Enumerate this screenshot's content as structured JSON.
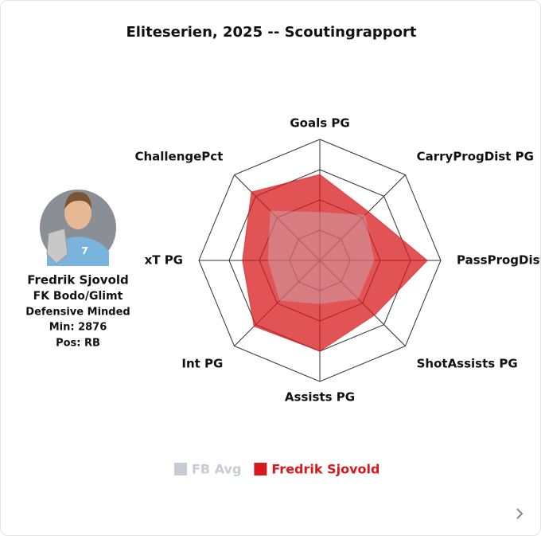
{
  "chart_data": {
    "type": "radar",
    "title": "Eliteserien, 2025 -- Scoutingrapport",
    "categories": [
      "Goals PG",
      "CarryProgDist PG",
      "PassProgDist",
      "ShotAssists PG",
      "Assists PG",
      "Int PG",
      "xT PG",
      "ChallengePct"
    ],
    "rlim": [
      0,
      100
    ],
    "rticks": [
      25,
      50,
      75,
      100
    ],
    "series": [
      {
        "name": "FB Avg",
        "color": "#c5ccd3",
        "values": [
          40,
          53,
          45,
          45,
          36,
          47,
          43,
          58
        ]
      },
      {
        "name": "Fredrik Sjovold",
        "color": "#d7191c",
        "values": [
          71,
          57,
          89,
          64,
          75,
          77,
          64,
          80
        ]
      }
    ]
  },
  "player": {
    "name": "Fredrik Sjovold",
    "team": "FK Bodo/Glimt",
    "role": "Defensive Minded",
    "minutes": "Min: 2876",
    "position": "Pos: RB"
  }
}
